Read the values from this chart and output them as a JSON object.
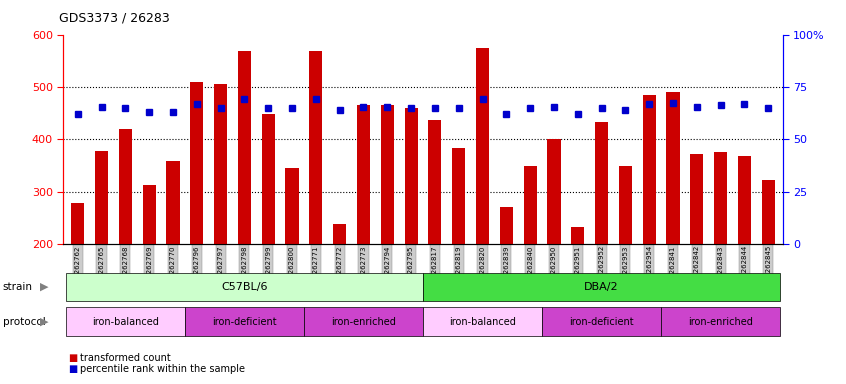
{
  "title": "GDS3373 / 26283",
  "samples": [
    "GSM262762",
    "GSM262765",
    "GSM262768",
    "GSM262769",
    "GSM262770",
    "GSM262796",
    "GSM262797",
    "GSM262798",
    "GSM262799",
    "GSM262800",
    "GSM262771",
    "GSM262772",
    "GSM262773",
    "GSM262794",
    "GSM262795",
    "GSM262817",
    "GSM262819",
    "GSM262820",
    "GSM262839",
    "GSM262840",
    "GSM262950",
    "GSM262951",
    "GSM262952",
    "GSM262953",
    "GSM262954",
    "GSM262841",
    "GSM262842",
    "GSM262843",
    "GSM262844",
    "GSM262845"
  ],
  "bar_values": [
    278,
    378,
    420,
    312,
    358,
    510,
    505,
    568,
    448,
    345,
    568,
    238,
    465,
    465,
    460,
    437,
    383,
    575,
    270,
    348,
    400,
    232,
    432,
    348,
    484,
    490,
    372,
    375,
    368,
    322
  ],
  "percentile_values": [
    448,
    462,
    460,
    452,
    452,
    468,
    460,
    476,
    460,
    460,
    476,
    456,
    462,
    462,
    460,
    460,
    460,
    476,
    448,
    460,
    462,
    448,
    460,
    456,
    468,
    470,
    462,
    466,
    468,
    460
  ],
  "bar_color": "#cc0000",
  "percentile_color": "#0000cc",
  "ylim_left": [
    200,
    600
  ],
  "ylim_right": [
    0,
    100
  ],
  "yticks_left": [
    200,
    300,
    400,
    500,
    600
  ],
  "yticks_right": [
    0,
    25,
    50,
    75,
    100
  ],
  "grid_lines": [
    300,
    400,
    500
  ],
  "strain_groups": [
    {
      "label": "C57BL/6",
      "start": 0,
      "end": 14,
      "color": "#ccffcc"
    },
    {
      "label": "DBA/2",
      "start": 15,
      "end": 29,
      "color": "#44dd44"
    }
  ],
  "protocol_groups": [
    {
      "label": "iron-balanced",
      "start": 0,
      "end": 4,
      "color": "#ffccff"
    },
    {
      "label": "iron-deficient",
      "start": 5,
      "end": 9,
      "color": "#cc44cc"
    },
    {
      "label": "iron-enriched",
      "start": 10,
      "end": 14,
      "color": "#cc44cc"
    },
    {
      "label": "iron-balanced",
      "start": 15,
      "end": 19,
      "color": "#ffccff"
    },
    {
      "label": "iron-deficient",
      "start": 20,
      "end": 24,
      "color": "#cc44cc"
    },
    {
      "label": "iron-enriched",
      "start": 25,
      "end": 29,
      "color": "#cc44cc"
    }
  ],
  "tick_bg_color": "#cccccc",
  "chart_bg": "#ffffff"
}
